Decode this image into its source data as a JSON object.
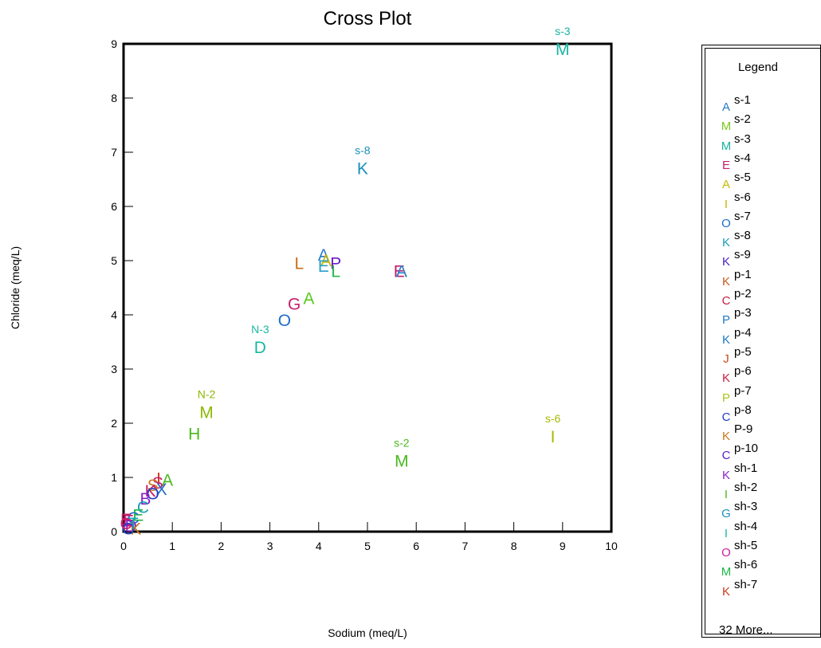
{
  "chart_data": {
    "type": "scatter",
    "title": "Cross Plot",
    "xlabel": "Sodium (meq/L)",
    "ylabel": "Chloride (meq/L)",
    "xlim": [
      0,
      10
    ],
    "ylim": [
      0,
      9
    ],
    "x_ticks": [
      0,
      1,
      2,
      3,
      4,
      5,
      6,
      7,
      8,
      9,
      10
    ],
    "y_ticks": [
      0,
      1,
      2,
      3,
      4,
      5,
      6,
      7,
      8,
      9
    ],
    "grid": false,
    "legend_position": "right",
    "points": [
      {
        "x": 9.0,
        "y": 8.9,
        "marker": "M",
        "color": "#17b3a3",
        "label": "s-3"
      },
      {
        "x": 4.9,
        "y": 6.7,
        "marker": "K",
        "color": "#1a8fb8",
        "label": "s-8"
      },
      {
        "x": 4.1,
        "y": 5.1,
        "marker": "A",
        "color": "#2a7ac8",
        "label": ""
      },
      {
        "x": 4.15,
        "y": 5.0,
        "marker": "A",
        "color": "#c8b800",
        "label": ""
      },
      {
        "x": 4.35,
        "y": 4.95,
        "marker": "P",
        "color": "#6a1fc8",
        "label": ""
      },
      {
        "x": 4.1,
        "y": 4.9,
        "marker": "E",
        "color": "#2aa0c8",
        "label": ""
      },
      {
        "x": 4.35,
        "y": 4.8,
        "marker": "L",
        "color": "#22b84a",
        "label": ""
      },
      {
        "x": 3.6,
        "y": 4.95,
        "marker": "L",
        "color": "#c87018",
        "label": ""
      },
      {
        "x": 5.65,
        "y": 4.8,
        "marker": "E",
        "color": "#c81e6e",
        "label": ""
      },
      {
        "x": 5.7,
        "y": 4.8,
        "marker": "A",
        "color": "#2a7ac8",
        "label": ""
      },
      {
        "x": 3.8,
        "y": 4.3,
        "marker": "A",
        "color": "#5ac81e",
        "label": ""
      },
      {
        "x": 3.5,
        "y": 4.2,
        "marker": "G",
        "color": "#c81e6e",
        "label": ""
      },
      {
        "x": 3.3,
        "y": 3.9,
        "marker": "O",
        "color": "#1f6ec8",
        "label": ""
      },
      {
        "x": 2.8,
        "y": 3.4,
        "marker": "D",
        "color": "#1ab8a0",
        "label": "N-3"
      },
      {
        "x": 1.7,
        "y": 2.2,
        "marker": "M",
        "color": "#8cb800",
        "label": "N-2"
      },
      {
        "x": 1.45,
        "y": 1.8,
        "marker": "H",
        "color": "#4ab81e",
        "label": ""
      },
      {
        "x": 5.7,
        "y": 1.3,
        "marker": "M",
        "color": "#4ab81e",
        "label": "s-2"
      },
      {
        "x": 8.8,
        "y": 1.75,
        "marker": "I",
        "color": "#a8b800",
        "label": "s-6"
      },
      {
        "x": 0.9,
        "y": 0.95,
        "marker": "A",
        "color": "#4ab81e",
        "label": ""
      },
      {
        "x": 0.72,
        "y": 0.98,
        "marker": "I",
        "color": "#c83a1e",
        "label": ""
      },
      {
        "x": 0.7,
        "y": 0.9,
        "marker": "S",
        "color": "#c81e6e",
        "label": ""
      },
      {
        "x": 0.6,
        "y": 0.85,
        "marker": "S",
        "color": "#c8781e",
        "label": ""
      },
      {
        "x": 0.78,
        "y": 0.78,
        "marker": "X",
        "color": "#1f6ec8",
        "label": ""
      },
      {
        "x": 0.55,
        "y": 0.75,
        "marker": "K",
        "color": "#c81e6e",
        "label": ""
      },
      {
        "x": 0.6,
        "y": 0.7,
        "marker": "O",
        "color": "#1f3ec8",
        "label": ""
      },
      {
        "x": 0.45,
        "y": 0.6,
        "marker": "B",
        "color": "#8a1fc8",
        "label": ""
      },
      {
        "x": 0.4,
        "y": 0.45,
        "marker": "C",
        "color": "#1aa0b8",
        "label": ""
      },
      {
        "x": 0.3,
        "y": 0.3,
        "marker": "E",
        "color": "#22b84a",
        "label": ""
      },
      {
        "x": 0.2,
        "y": 0.25,
        "marker": "C",
        "color": "#1f6ec8",
        "label": ""
      },
      {
        "x": 0.1,
        "y": 0.2,
        "marker": "E",
        "color": "#c81e6e",
        "label": ""
      },
      {
        "x": 0.05,
        "y": 0.22,
        "marker": "E",
        "color": "#c81e6e",
        "label": ""
      },
      {
        "x": 0.15,
        "y": 0.1,
        "marker": "D",
        "color": "#8a1fc8",
        "label": ""
      },
      {
        "x": 0.25,
        "y": 0.05,
        "marker": "K",
        "color": "#c87018",
        "label": ""
      },
      {
        "x": 0.1,
        "y": 0.05,
        "marker": "O",
        "color": "#1f3ec8",
        "label": ""
      },
      {
        "x": 0.05,
        "y": 0.15,
        "marker": "C",
        "color": "#c81e6e",
        "label": ""
      },
      {
        "x": 0.2,
        "y": 0.15,
        "marker": "T",
        "color": "#1aa0b8",
        "label": ""
      }
    ]
  },
  "legend": {
    "title": "Legend",
    "items": [
      {
        "marker": "A",
        "color": "#2a7ac8",
        "label": "s-1"
      },
      {
        "marker": "M",
        "color": "#7ac81e",
        "label": "s-2"
      },
      {
        "marker": "M",
        "color": "#17b3a3",
        "label": "s-3"
      },
      {
        "marker": "E",
        "color": "#c81e6e",
        "label": "s-4"
      },
      {
        "marker": "A",
        "color": "#c8b800",
        "label": "s-5"
      },
      {
        "marker": "I",
        "color": "#c8b800",
        "label": "s-6"
      },
      {
        "marker": "O",
        "color": "#1f6ec8",
        "label": "s-7"
      },
      {
        "marker": "K",
        "color": "#1a9fb8",
        "label": "s-8"
      },
      {
        "marker": "K",
        "color": "#4a1fc8",
        "label": "s-9"
      },
      {
        "marker": "K",
        "color": "#c85a1e",
        "label": "p-1"
      },
      {
        "marker": "C",
        "color": "#c81e3e",
        "label": "p-2"
      },
      {
        "marker": "P",
        "color": "#1f7ac8",
        "label": "p-3"
      },
      {
        "marker": "K",
        "color": "#1a7ac8",
        "label": "p-4"
      },
      {
        "marker": "J",
        "color": "#c84a1e",
        "label": "p-5"
      },
      {
        "marker": "K",
        "color": "#c81e3e",
        "label": "p-6"
      },
      {
        "marker": "P",
        "color": "#a8c81e",
        "label": "p-7"
      },
      {
        "marker": "C",
        "color": "#1f3ec8",
        "label": "p-8"
      },
      {
        "marker": "K",
        "color": "#c8781e",
        "label": "P-9"
      },
      {
        "marker": "C",
        "color": "#5a1fc8",
        "label": "p-10"
      },
      {
        "marker": "K",
        "color": "#8a1fc8",
        "label": "sh-1"
      },
      {
        "marker": "I",
        "color": "#4ab81e",
        "label": "sh-2"
      },
      {
        "marker": "G",
        "color": "#1a8fb8",
        "label": "sh-3"
      },
      {
        "marker": "I",
        "color": "#1ab8a0",
        "label": "sh-4"
      },
      {
        "marker": "O",
        "color": "#c81e9e",
        "label": "sh-5"
      },
      {
        "marker": "M",
        "color": "#1ab84a",
        "label": "sh-6"
      },
      {
        "marker": "K",
        "color": "#c83a1e",
        "label": "sh-7"
      }
    ],
    "more_text": "32 More..."
  }
}
